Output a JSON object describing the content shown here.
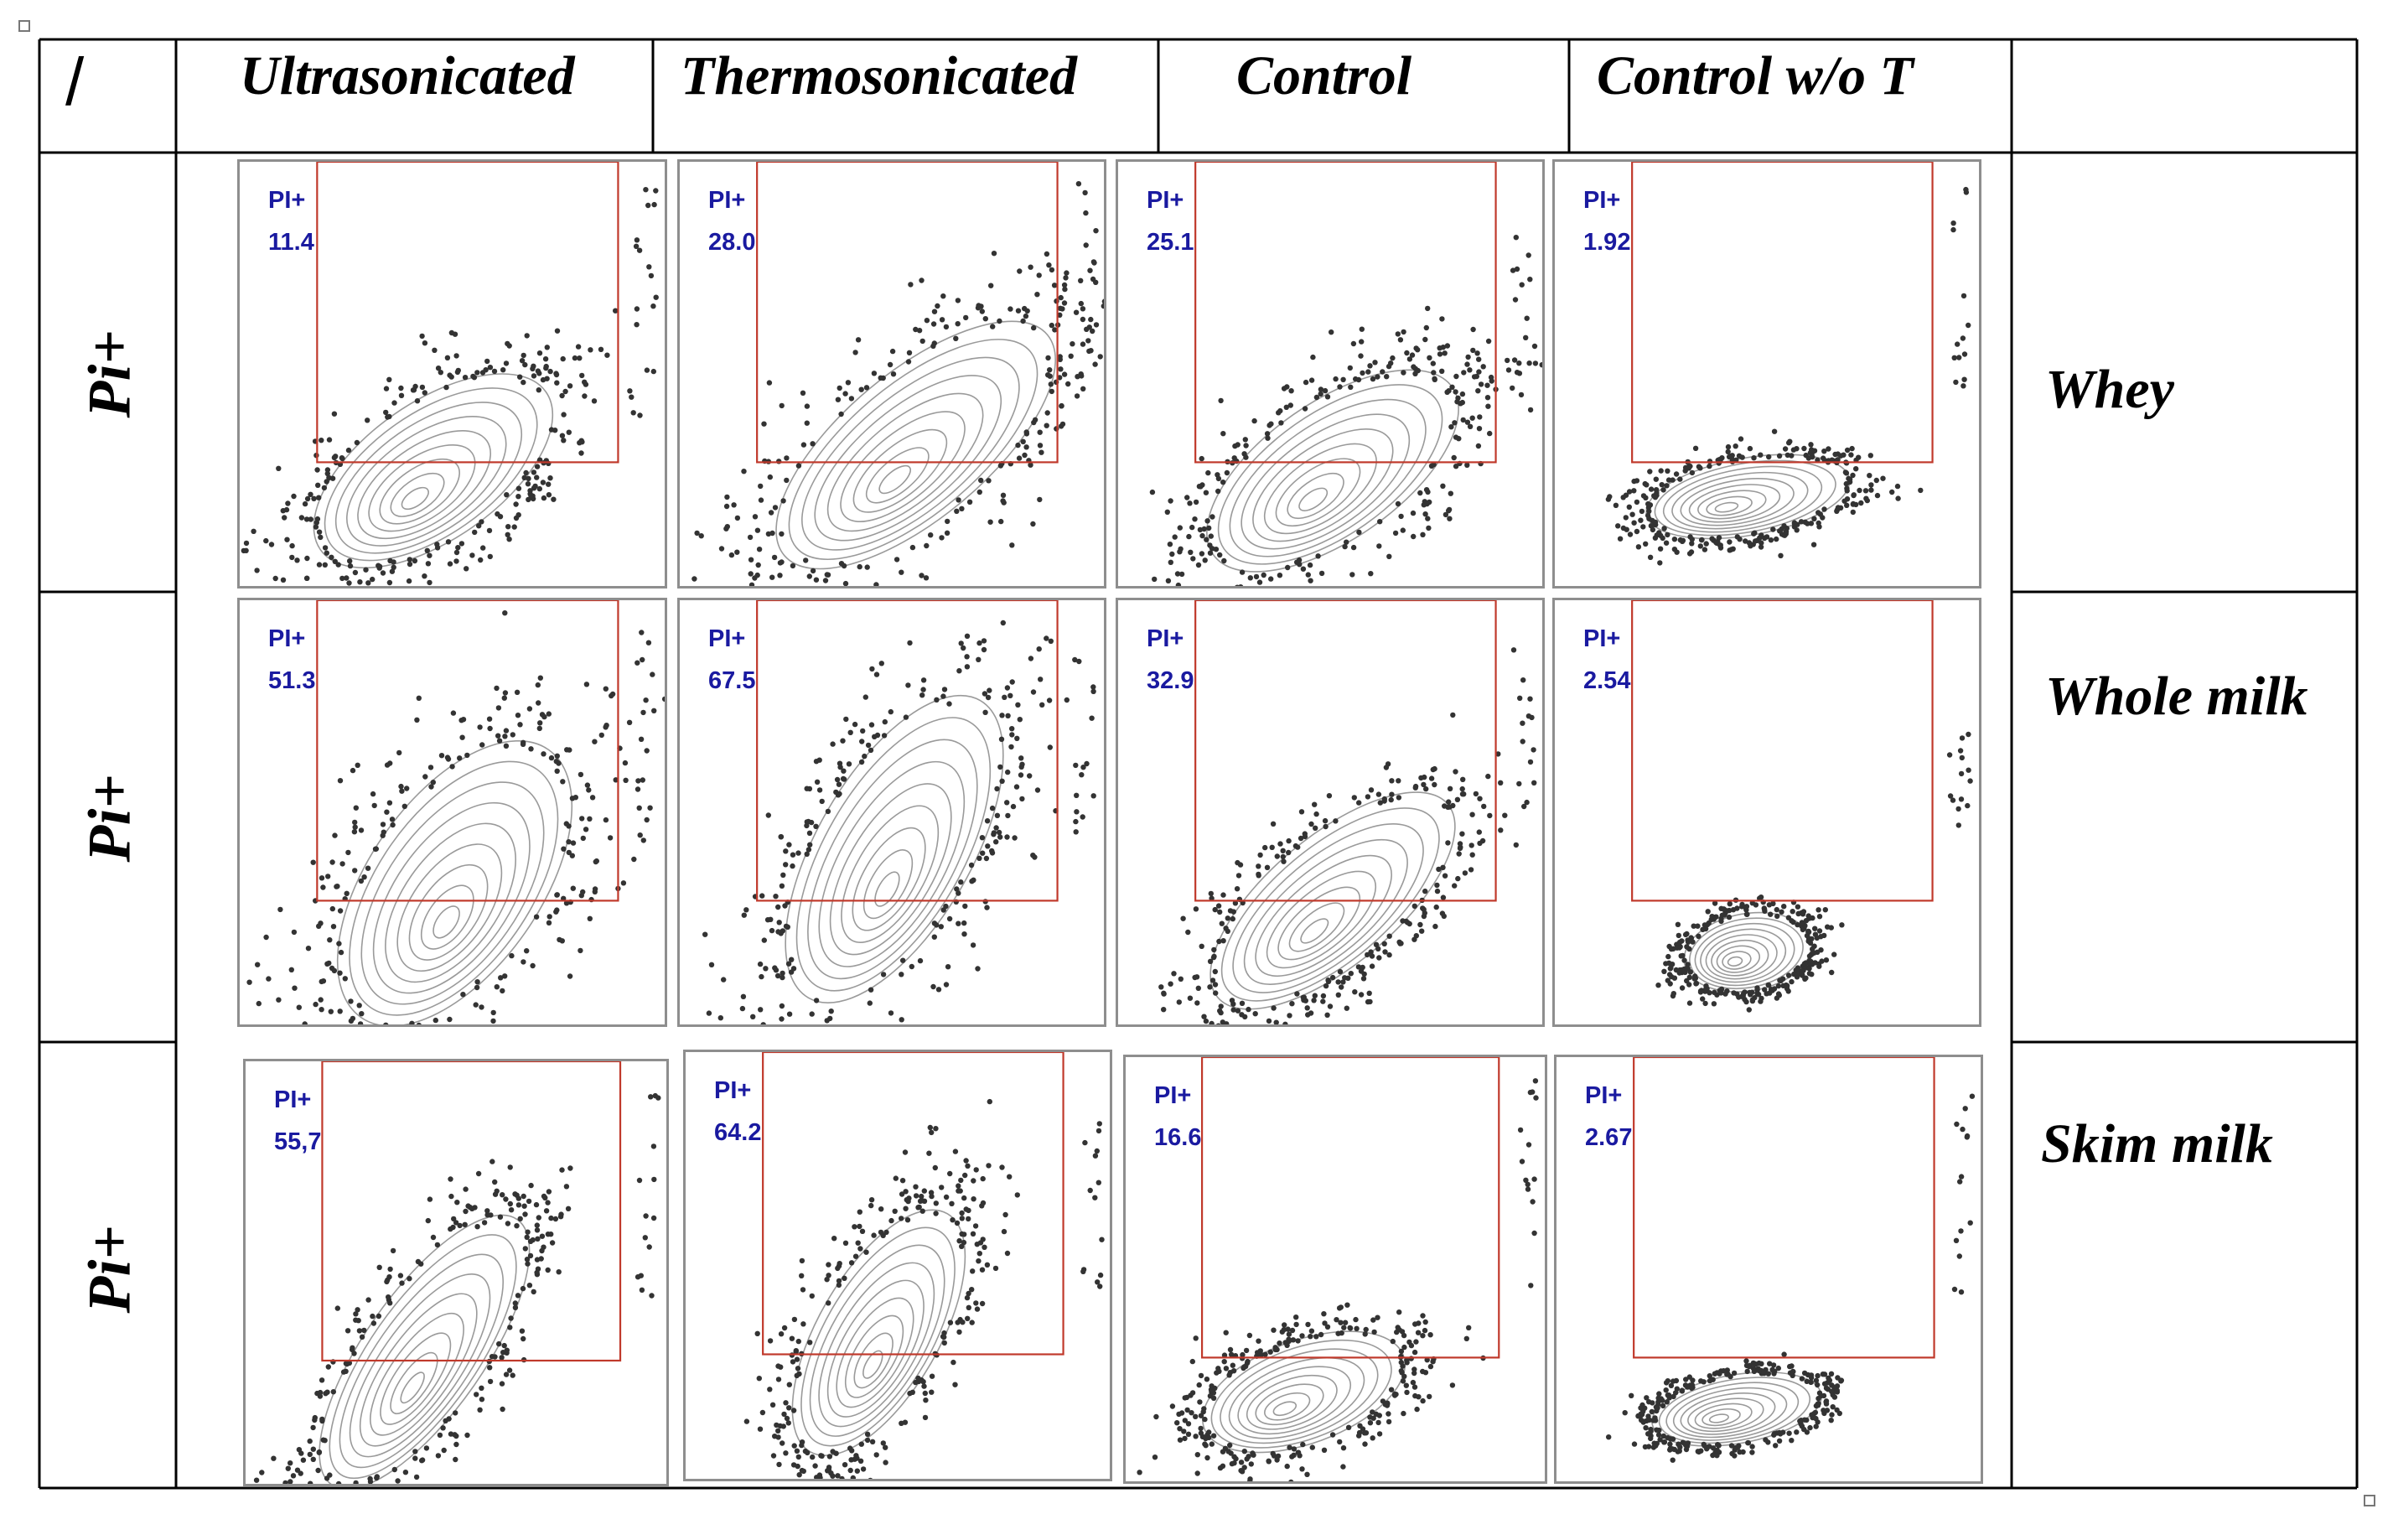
{
  "figure": {
    "corner_symbol": "/",
    "columns": [
      "Ultrasonicated",
      "Thermosonicated",
      "Control",
      "Control w/o T"
    ],
    "rows": [
      {
        "row_label": "Pi+",
        "sample": "Whey"
      },
      {
        "row_label": "Pi+",
        "sample": "Whole milk"
      },
      {
        "row_label": "Pi+",
        "sample": "Skim milk"
      }
    ]
  },
  "chart_data": [
    {
      "type": "scatter",
      "sample": "Whey",
      "treatment": "Ultrasonicated",
      "gate": "PI+",
      "percent": "11.4"
    },
    {
      "type": "scatter",
      "sample": "Whey",
      "treatment": "Thermosonicated",
      "gate": "PI+",
      "percent": "28.0"
    },
    {
      "type": "scatter",
      "sample": "Whey",
      "treatment": "Control",
      "gate": "PI+",
      "percent": "25.1"
    },
    {
      "type": "scatter",
      "sample": "Whey",
      "treatment": "Control w/o T",
      "gate": "PI+",
      "percent": "1.92"
    },
    {
      "type": "scatter",
      "sample": "Whole milk",
      "treatment": "Ultrasonicated",
      "gate": "PI+",
      "percent": "51.3"
    },
    {
      "type": "scatter",
      "sample": "Whole milk",
      "treatment": "Thermosonicated",
      "gate": "PI+",
      "percent": "67.5"
    },
    {
      "type": "scatter",
      "sample": "Whole milk",
      "treatment": "Control",
      "gate": "PI+",
      "percent": "32.9"
    },
    {
      "type": "scatter",
      "sample": "Whole milk",
      "treatment": "Control w/o T",
      "gate": "PI+",
      "percent": "2.54"
    },
    {
      "type": "scatter",
      "sample": "Skim milk",
      "treatment": "Ultrasonicated",
      "gate": "PI+",
      "percent": "55,7"
    },
    {
      "type": "scatter",
      "sample": "Skim milk",
      "treatment": "Thermosonicated",
      "gate": "PI+",
      "percent": "64.2"
    },
    {
      "type": "scatter",
      "sample": "Skim milk",
      "treatment": "Control",
      "gate": "PI+",
      "percent": "16.6"
    },
    {
      "type": "scatter",
      "sample": "Skim milk",
      "treatment": "Control w/o T",
      "gate": "PI+",
      "percent": "2.67"
    }
  ],
  "colors": {
    "gate": "#c0392b",
    "label": "#1a1aa0",
    "dots": "#333333",
    "contour": "#9a9a9a"
  }
}
